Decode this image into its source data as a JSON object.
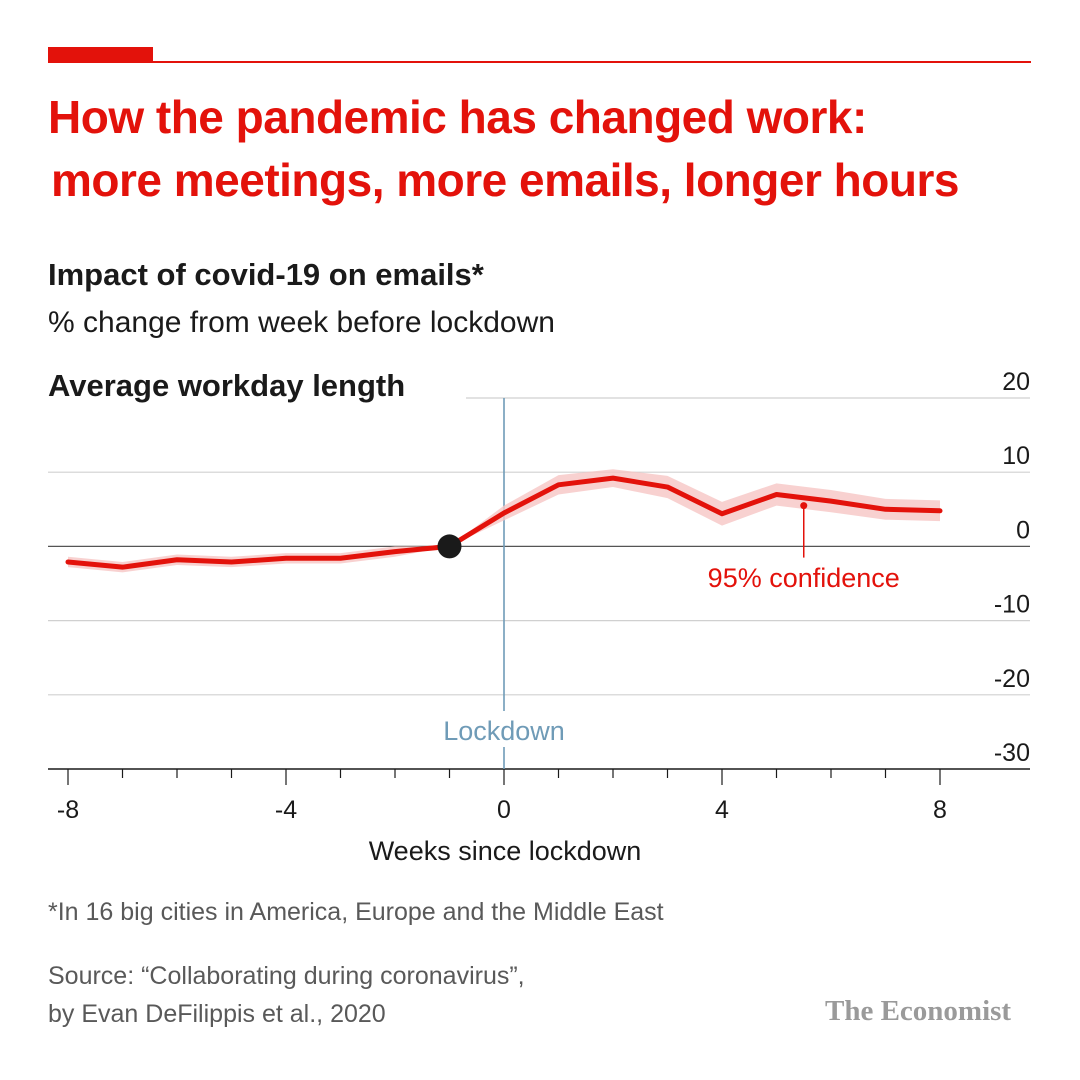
{
  "header": {
    "title_line1": "How the pandemic has changed work:",
    "title_line2": "more meetings, more emails, longer hours",
    "accent_color": "#e3120b"
  },
  "subtitle": "Impact of covid-19 on emails*",
  "subtitle2": "% change from week before lockdown",
  "chart_data": {
    "type": "line",
    "title": "Average workday length",
    "xlabel": "Weeks since lockdown",
    "ylabel": "",
    "xlim": [
      -8,
      8
    ],
    "ylim": [
      -30,
      20
    ],
    "x_ticks": [
      -8,
      -4,
      0,
      4,
      8
    ],
    "y_ticks": [
      20,
      10,
      0,
      -10,
      -20,
      -30
    ],
    "grid": true,
    "series": [
      {
        "color": "#e3120b",
        "x": [
          -8,
          -7,
          -6,
          -5,
          -4,
          -3,
          -2,
          -1,
          0,
          1,
          2,
          3,
          4,
          5,
          6,
          7,
          8
        ],
        "y": [
          -2.1,
          -2.8,
          -1.8,
          -2.1,
          -1.6,
          -1.6,
          -0.7,
          0,
          4.5,
          8.3,
          9.2,
          8.0,
          4.4,
          7.0,
          6.1,
          5.0,
          4.8
        ],
        "ci_lower": [
          -2.8,
          -3.5,
          -2.5,
          -2.8,
          -2.3,
          -2.3,
          -1.4,
          0,
          3.5,
          7.0,
          8.0,
          6.5,
          2.8,
          5.5,
          4.6,
          3.6,
          3.4
        ],
        "ci_upper": [
          -1.4,
          -2.1,
          -1.1,
          -1.4,
          -0.9,
          -0.9,
          0.0,
          0,
          5.5,
          9.6,
          10.4,
          9.5,
          6.0,
          8.5,
          7.6,
          6.4,
          6.2
        ]
      }
    ],
    "baseline_point": {
      "x": -1,
      "y": 0
    },
    "annotations": [
      {
        "text": "Lockdown",
        "x": 0,
        "color": "#6f9bb7"
      },
      {
        "text": "95% confidence",
        "x": 5.5,
        "y": 5.5,
        "color": "#e3120b"
      }
    ]
  },
  "footnote": "*In 16 big cities in America, Europe and the Middle East",
  "source": {
    "line1": "Source: “Collaborating during coronavirus”,",
    "line2": "by Evan DeFilippis et al., 2020"
  },
  "logo": "The Economist"
}
